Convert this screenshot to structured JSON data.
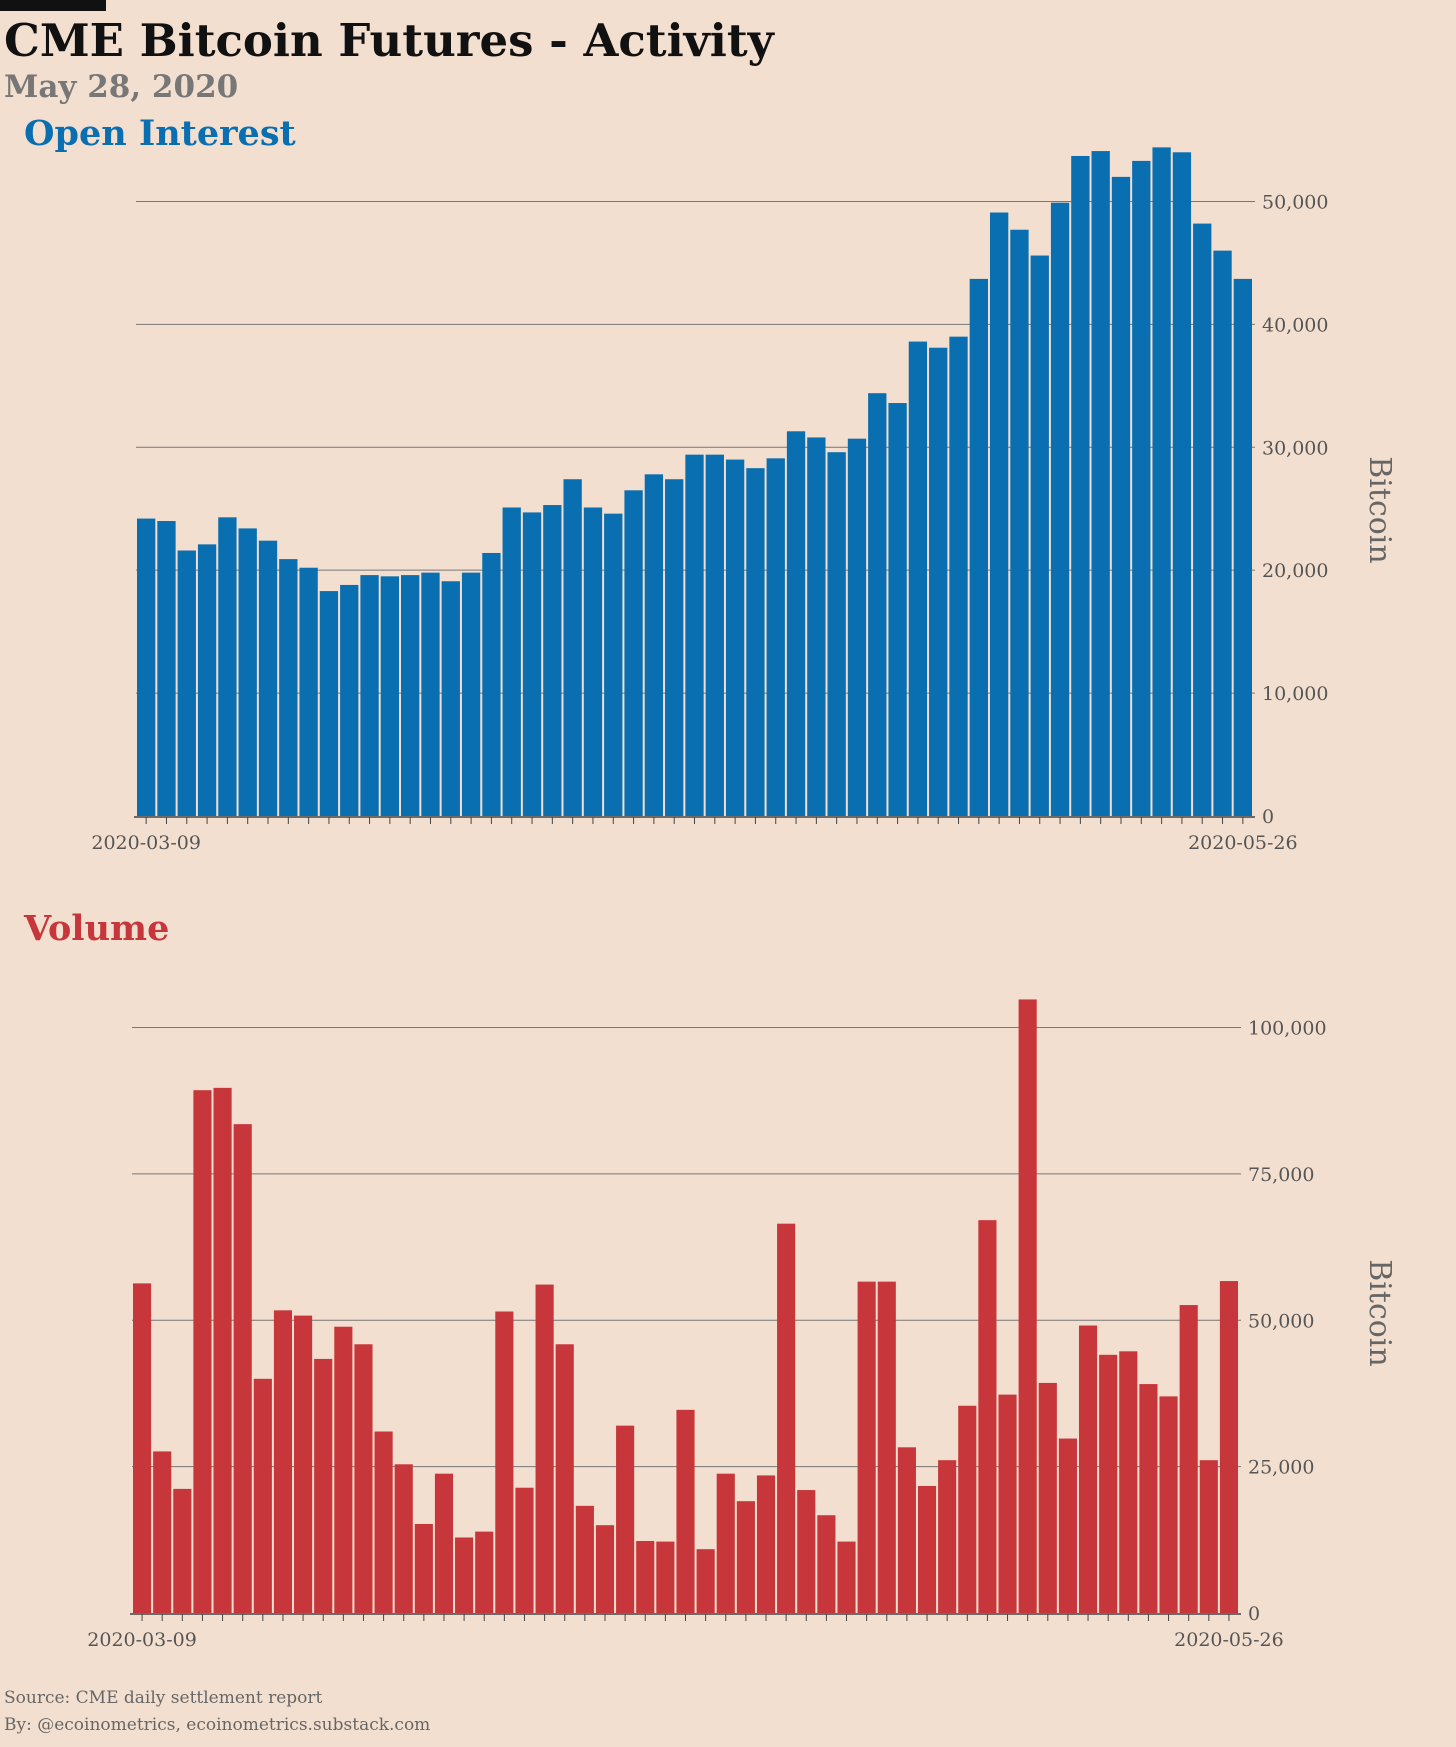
{
  "title": "CME Bitcoin Futures - Activity",
  "subtitle": "May 28, 2020",
  "footer": {
    "source": "Source: CME daily settlement report",
    "byline": "By: @ecoinometrics, ecoinometrics.substack.com"
  },
  "chart_data": [
    {
      "type": "bar",
      "title": "Open Interest",
      "ylabel": "Bitcoin",
      "xlabel": "",
      "color": "#0a6fb1",
      "x_tick_labels": [
        "2020-03-09",
        "2020-05-26"
      ],
      "ylim": [
        0,
        55000
      ],
      "yticks": [
        0,
        10000,
        20000,
        30000,
        40000,
        50000
      ],
      "ytick_labels": [
        "0",
        "10,000",
        "20,000",
        "30,000",
        "40,000",
        "50,000"
      ],
      "grid": "horizontal",
      "values": [
        24200,
        24000,
        21600,
        22100,
        24300,
        23400,
        22400,
        20900,
        20200,
        18300,
        18800,
        19600,
        19500,
        19600,
        19800,
        19100,
        19800,
        21400,
        25100,
        24700,
        25300,
        27400,
        25100,
        24600,
        26500,
        27800,
        27400,
        29400,
        29400,
        29000,
        28300,
        29100,
        31300,
        30800,
        29600,
        30700,
        34400,
        33600,
        38600,
        38100,
        39000,
        43700,
        49100,
        47700,
        45600,
        49900,
        53700,
        54100,
        52000,
        53300,
        54400,
        54000,
        48200,
        46000,
        43700
      ]
    },
    {
      "type": "bar",
      "title": "Volume",
      "ylabel": "Bitcoin",
      "xlabel": "",
      "color": "#c7363a",
      "x_tick_labels": [
        "2020-03-09",
        "2020-05-26"
      ],
      "ylim": [
        0,
        110000
      ],
      "yticks": [
        0,
        25000,
        50000,
        75000,
        100000
      ],
      "ytick_labels": [
        "0",
        "25,000",
        "50,000",
        "75,000",
        "100,000"
      ],
      "grid": "horizontal",
      "values": [
        56300,
        27600,
        21200,
        89300,
        89700,
        83500,
        40000,
        51700,
        50800,
        43400,
        48900,
        45900,
        31000,
        25400,
        15200,
        23800,
        12900,
        13900,
        51500,
        21400,
        56100,
        45900,
        18300,
        15000,
        32000,
        12300,
        12200,
        34700,
        10900,
        23800,
        19100,
        23500,
        66500,
        21000,
        16700,
        12200,
        56600,
        56600,
        28300,
        21700,
        26100,
        35400,
        67100,
        37300,
        104800,
        39300,
        29800,
        49100,
        44100,
        44700,
        39100,
        37000,
        52600,
        26100,
        56700
      ]
    }
  ]
}
